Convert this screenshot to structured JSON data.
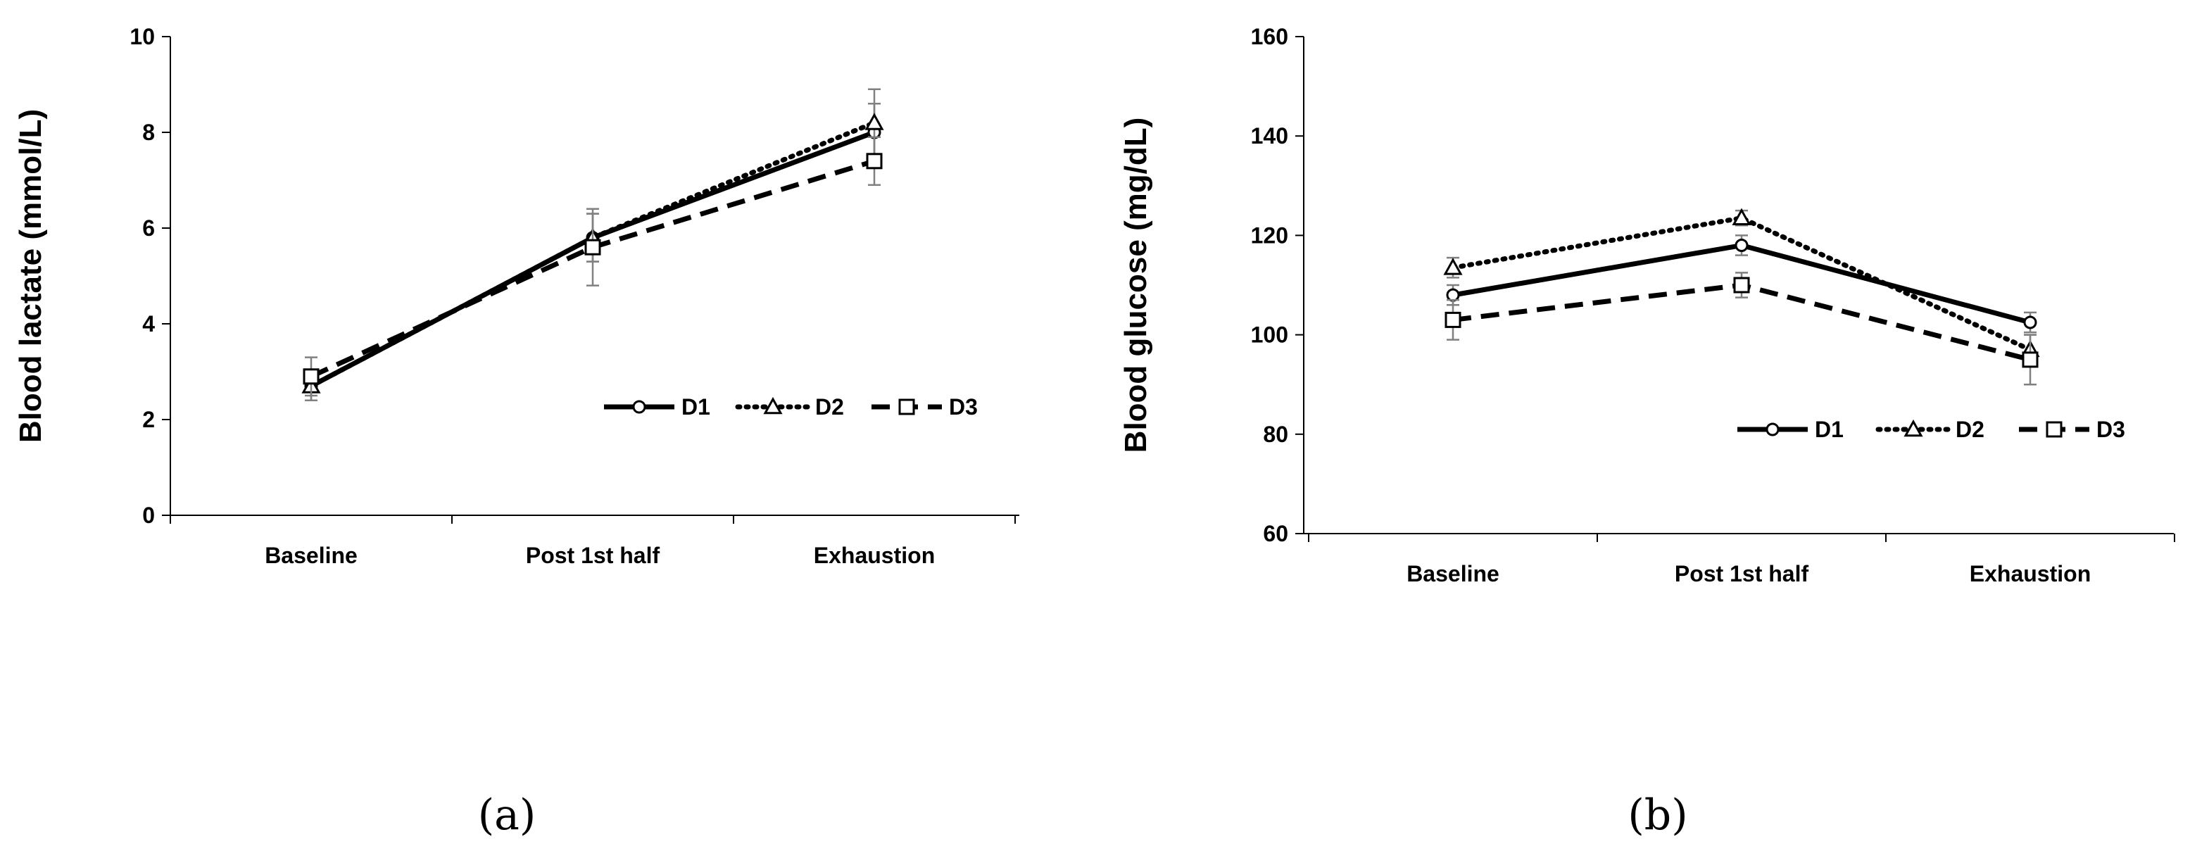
{
  "chart_data": [
    {
      "type": "line",
      "panel_label": "(a)",
      "title": "",
      "xlabel": "",
      "ylabel": "Blood lactate (mmol/L)",
      "categories": [
        "Baseline",
        "Post 1st half",
        "Exhaustion"
      ],
      "ylim": [
        0,
        10
      ],
      "yticks": [
        0,
        2,
        4,
        6,
        8,
        10
      ],
      "legend_position": "bottom-right",
      "series": [
        {
          "name": "D1",
          "marker": "circle",
          "line": "solid",
          "values": [
            2.7,
            5.8,
            8.0
          ],
          "errors": [
            0.3,
            0.5,
            0.6
          ]
        },
        {
          "name": "D2",
          "marker": "triangle",
          "line": "dotted",
          "values": [
            2.7,
            5.8,
            8.2
          ],
          "errors": [
            0.3,
            0.5,
            0.7
          ]
        },
        {
          "name": "D3",
          "marker": "square",
          "line": "dashed",
          "values": [
            2.9,
            5.6,
            7.4
          ],
          "errors": [
            0.4,
            0.8,
            0.5
          ]
        }
      ]
    },
    {
      "type": "line",
      "panel_label": "(b)",
      "title": "",
      "xlabel": "",
      "ylabel": "Blood glucose (mg/dL)",
      "categories": [
        "Baseline",
        "Post 1st half",
        "Exhaustion"
      ],
      "ylim": [
        60,
        160
      ],
      "yticks": [
        60,
        80,
        100,
        120,
        140,
        160
      ],
      "legend_position": "bottom-right",
      "series": [
        {
          "name": "D1",
          "marker": "circle",
          "line": "solid",
          "values": [
            108,
            118,
            102.5
          ],
          "errors": [
            2,
            2,
            2
          ]
        },
        {
          "name": "D2",
          "marker": "triangle",
          "line": "dotted",
          "values": [
            113.5,
            123.5,
            97
          ],
          "errors": [
            2,
            1.5,
            3
          ]
        },
        {
          "name": "D3",
          "marker": "square",
          "line": "dashed",
          "values": [
            103,
            110,
            95
          ],
          "errors": [
            4,
            2.5,
            5
          ]
        }
      ]
    }
  ]
}
